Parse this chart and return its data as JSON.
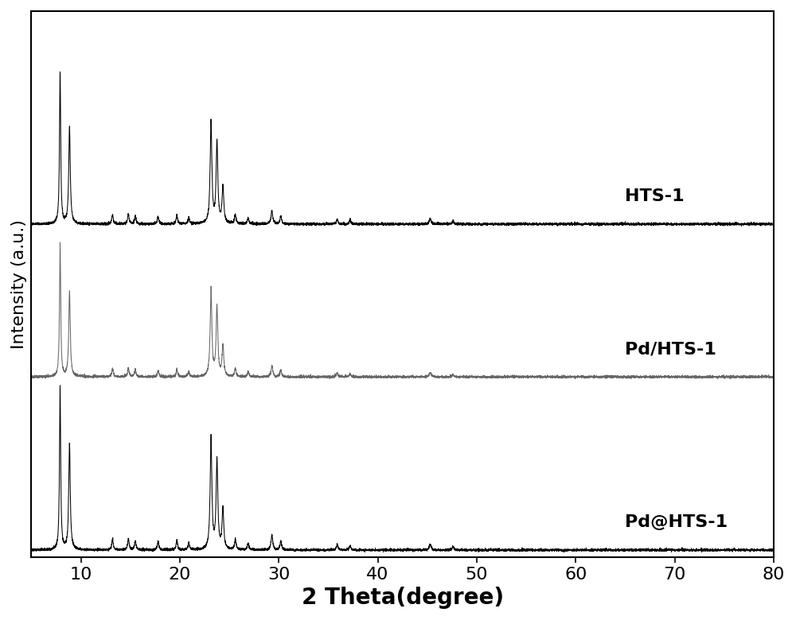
{
  "xlabel": "2 Theta(degree)",
  "ylabel": "Intensity (a.u.)",
  "xlim": [
    5,
    80
  ],
  "xticks": [
    10,
    20,
    30,
    40,
    50,
    60,
    70,
    80
  ],
  "labels": [
    "HTS-1",
    "Pd/HTS-1",
    "Pd@HTS-1"
  ],
  "colors": [
    "#000000",
    "#666666",
    "#000000"
  ],
  "offsets": [
    1.6,
    0.85,
    0.0
  ],
  "background_color": "#ffffff",
  "xlabel_fontsize": 20,
  "ylabel_fontsize": 16,
  "tick_fontsize": 16,
  "label_fontsize": 16,
  "figsize": [
    10,
    7.8
  ],
  "dpi": 100,
  "peak_positions": [
    7.9,
    8.85,
    13.2,
    14.8,
    15.5,
    17.8,
    19.7,
    20.9,
    23.15,
    23.75,
    24.35,
    25.6,
    26.9,
    29.3,
    30.2,
    35.9,
    37.2,
    45.3,
    47.6
  ],
  "peak_heights_hts1": [
    0.75,
    0.48,
    0.045,
    0.05,
    0.04,
    0.035,
    0.04,
    0.03,
    0.5,
    0.4,
    0.18,
    0.045,
    0.03,
    0.065,
    0.04,
    0.025,
    0.02,
    0.025,
    0.015
  ],
  "peak_heights_pd_hts": [
    0.65,
    0.42,
    0.04,
    0.045,
    0.035,
    0.03,
    0.035,
    0.025,
    0.43,
    0.34,
    0.15,
    0.04,
    0.025,
    0.055,
    0.035,
    0.02,
    0.015,
    0.02,
    0.01
  ],
  "peak_heights_pd_at": [
    0.8,
    0.52,
    0.05,
    0.055,
    0.045,
    0.04,
    0.045,
    0.035,
    0.55,
    0.44,
    0.2,
    0.05,
    0.035,
    0.075,
    0.045,
    0.028,
    0.022,
    0.028,
    0.018
  ],
  "peak_widths": [
    0.07,
    0.09,
    0.09,
    0.09,
    0.09,
    0.09,
    0.09,
    0.09,
    0.1,
    0.1,
    0.1,
    0.09,
    0.09,
    0.1,
    0.09,
    0.09,
    0.09,
    0.12,
    0.09
  ]
}
